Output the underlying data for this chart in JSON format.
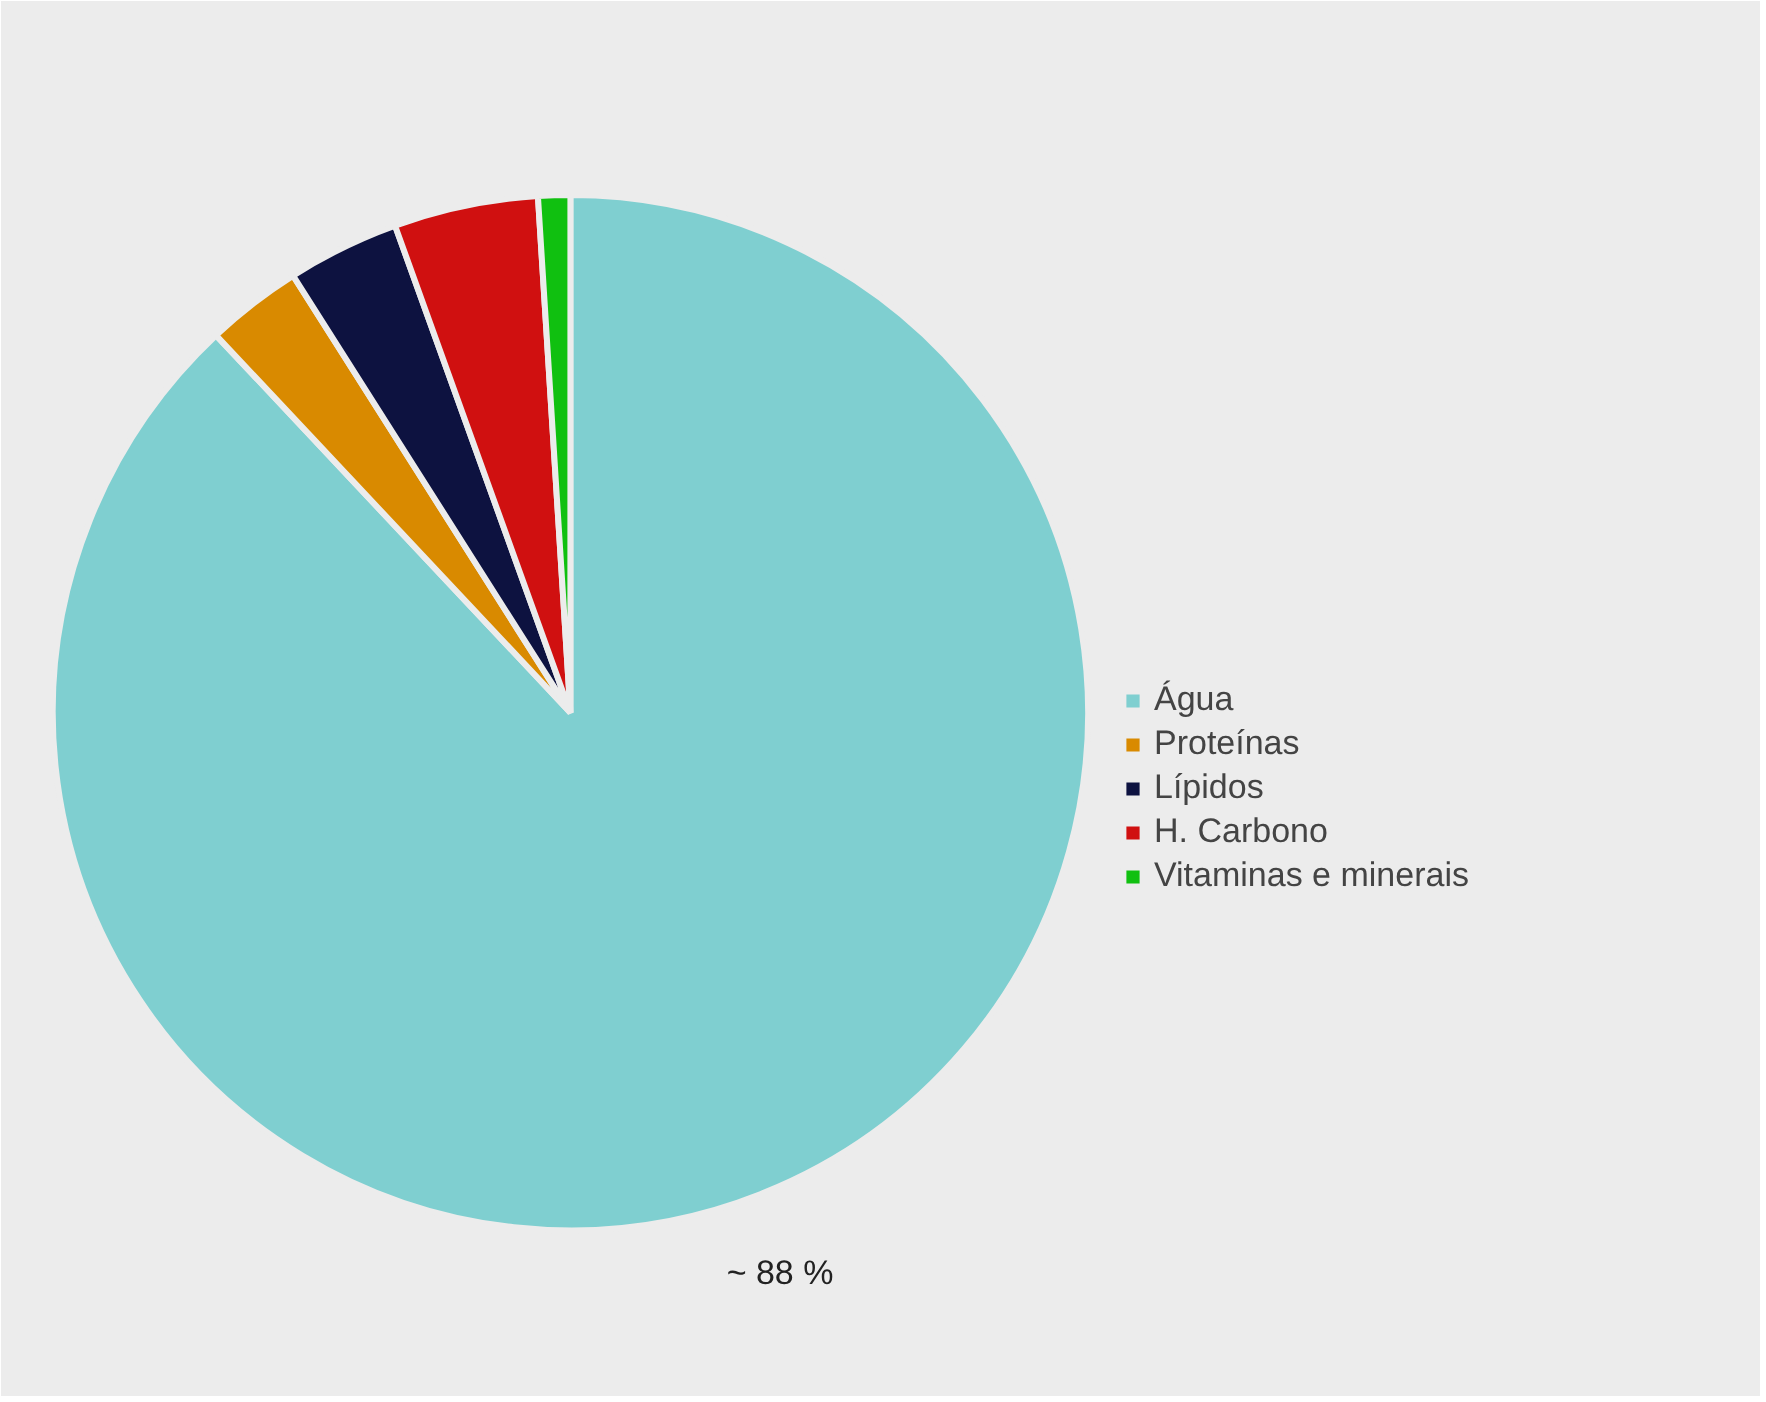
{
  "chart_data": {
    "type": "pie",
    "categories": [
      "Água",
      "Proteínas",
      "Lípidos",
      "H. Carbono",
      "Vitaminas e minerais"
    ],
    "values": [
      88,
      3,
      3.5,
      4.5,
      1
    ],
    "colors": [
      "#7fcfd0",
      "#d98a00",
      "#0d1240",
      "#d01010",
      "#10c010"
    ],
    "value_labels": [
      "~ 88 %",
      null,
      null,
      null,
      null
    ],
    "legend": "right"
  }
}
